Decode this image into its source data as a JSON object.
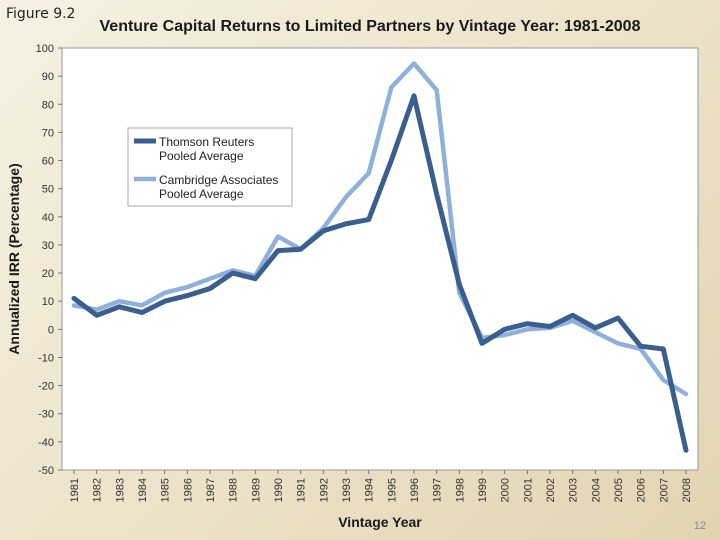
{
  "figure_label": "Figure 9.2",
  "page_number": "12",
  "colors": {
    "series1": "#3a5f8f",
    "series2": "#8fb0d9"
  },
  "chart_data": {
    "type": "line",
    "title": "Venture Capital Returns to Limited Partners by Vintage Year: 1981-2008",
    "xlabel": "Vintage Year",
    "ylabel": "Annualized IRR (Percentage)",
    "ylim": [
      -50,
      100
    ],
    "yticks": [
      100,
      90,
      80,
      70,
      60,
      50,
      40,
      30,
      20,
      10,
      0,
      -10,
      -20,
      -30,
      -40,
      -50
    ],
    "grid": false,
    "legend_position": "upper-left",
    "x": [
      "1981",
      "1982",
      "1983",
      "1984",
      "1985",
      "1986",
      "1987",
      "1988",
      "1989",
      "1990",
      "1991",
      "1992",
      "1993",
      "1994",
      "1995",
      "1996",
      "1997",
      "1998",
      "1999",
      "2000",
      "2001",
      "2002",
      "2003",
      "2004",
      "2005",
      "2006",
      "2007",
      "2008"
    ],
    "series": [
      {
        "name": "Thomson Reuters Pooled Average",
        "legend_lines": [
          "Thomson Reuters",
          "Pooled Average"
        ],
        "values": [
          11,
          5,
          8,
          6,
          10,
          12,
          14.5,
          20,
          18,
          28,
          28.5,
          35,
          37.5,
          39,
          60,
          83,
          48,
          16,
          -5,
          0,
          2,
          1,
          5,
          0.5,
          4,
          -6,
          -7,
          -43
        ]
      },
      {
        "name": "Cambridge Associates Pooled Average",
        "legend_lines": [
          "Cambridge Associates",
          "Pooled Average"
        ],
        "values": [
          8.5,
          7,
          10,
          8.5,
          13,
          15,
          18,
          21,
          19,
          33,
          28.5,
          36,
          47,
          55.5,
          86,
          94.5,
          85,
          13,
          -3,
          -2,
          0,
          0.5,
          3,
          -1,
          -5,
          -7,
          -18,
          -23
        ]
      }
    ]
  }
}
